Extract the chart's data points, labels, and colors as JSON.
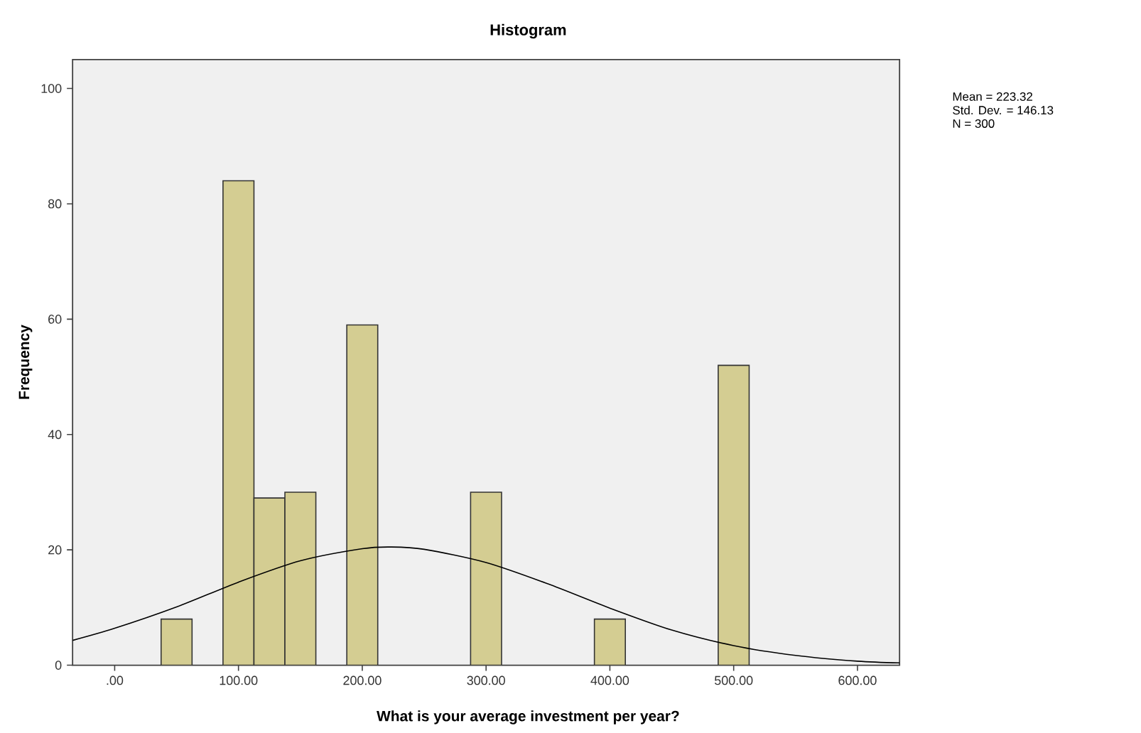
{
  "chart_data": {
    "type": "histogram",
    "title": "Histogram",
    "xlabel": "What is your average investment per year?",
    "ylabel": "Frequency",
    "bins": [
      37.5,
      62.5,
      87.5,
      112.5,
      137.5,
      162.5,
      187.5,
      212.5,
      237.5,
      262.5,
      287.5,
      312.5,
      337.5,
      362.5,
      387.5,
      412.5,
      437.5,
      462.5,
      487.5,
      512.5
    ],
    "values": [
      8,
      0,
      84,
      29,
      30,
      0,
      59,
      0,
      0,
      0,
      30,
      0,
      0,
      0,
      8,
      0,
      0,
      0,
      52
    ],
    "color": "#d4cd92",
    "series": [
      {
        "type": "line",
        "color": "#000000",
        "x": [
          -34,
          0,
          50,
          100,
          150,
          200,
          223,
          250,
          300,
          350,
          400,
          450,
          500,
          550,
          600,
          634
        ],
        "values": [
          4.3,
          6.4,
          10.1,
          14.4,
          18.1,
          20.2,
          20.5,
          20.1,
          17.8,
          14.1,
          9.9,
          6.1,
          3.4,
          1.7,
          0.7,
          0.4
        ]
      }
    ],
    "xlim": [
      -34,
      634
    ],
    "ylim": [
      0,
      105
    ],
    "xticks": [
      {
        "value": 0,
        "label": ".00"
      },
      {
        "value": 100,
        "label": "100.00"
      },
      {
        "value": 200,
        "label": "200.00"
      },
      {
        "value": 300,
        "label": "300.00"
      },
      {
        "value": 400,
        "label": "400.00"
      },
      {
        "value": 500,
        "label": "500.00"
      },
      {
        "value": 600,
        "label": "600.00"
      }
    ],
    "yticks": [
      0,
      20,
      40,
      60,
      80,
      100
    ],
    "annotations": [
      "Mean = 223.32",
      "Std. Dev. = 146.13",
      "N = 300"
    ]
  }
}
